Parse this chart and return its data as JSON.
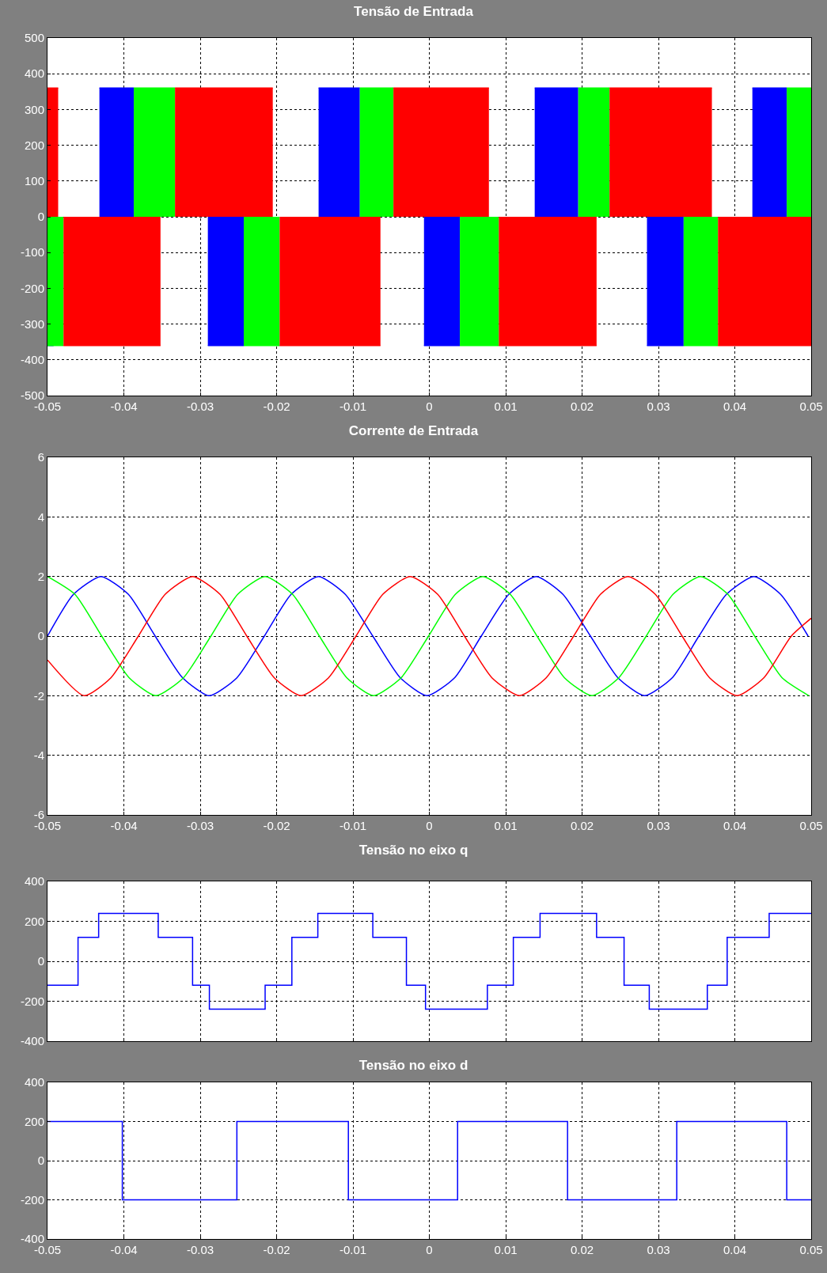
{
  "chart_data": [
    {
      "type": "area",
      "title": "Tensão de Entrada",
      "xlim": [
        -0.05,
        0.05
      ],
      "xticks": [
        -0.05,
        -0.04,
        -0.03,
        -0.02,
        -0.01,
        0,
        0.01,
        0.02,
        0.03,
        0.04,
        0.05
      ],
      "ylim": [
        -500,
        500
      ],
      "yticks": [
        -500,
        -400,
        -300,
        -200,
        -100,
        0,
        100,
        200,
        300,
        400,
        500
      ],
      "grid": true,
      "series": [
        {
          "color": "#0000ff",
          "x": [
            -0.05,
            -0.0492,
            -0.0462,
            -0.0432,
            -0.0387,
            -0.0339,
            -0.029,
            -0.0243,
            -0.0194,
            -0.0145,
            -0.0091,
            -0.0049,
            -0.0007,
            0.004,
            0.0089,
            0.0138,
            0.0195,
            0.024,
            0.0285,
            0.0333,
            0.0378,
            0.0423,
            0.0468
          ],
          "values": [
            -360,
            -360,
            null,
            360,
            360,
            null,
            -360,
            -360,
            null,
            360,
            360,
            null,
            -360,
            -360,
            null,
            360,
            360,
            null,
            -360,
            -360,
            null,
            360,
            360
          ]
        },
        {
          "color": "#00ff00",
          "x": [
            -0.05,
            -0.0479,
            -0.0433,
            -0.0387,
            -0.0333,
            -0.0288,
            -0.0243,
            -0.0196,
            -0.0144,
            -0.0091,
            -0.0047,
            -0.0004,
            0.004,
            0.0091,
            0.0143,
            0.0195,
            0.0236,
            0.0285,
            0.0333,
            0.0378,
            0.0423,
            0.0468,
            0.05
          ],
          "values": [
            -360,
            -360,
            null,
            360,
            360,
            null,
            -360,
            -360,
            null,
            360,
            360,
            null,
            -360,
            -360,
            null,
            360,
            360,
            null,
            -360,
            -360,
            null,
            360,
            360
          ]
        },
        {
          "color": "#ff0000",
          "x": [
            -0.05,
            -0.0486,
            -0.0482,
            -0.0479,
            -0.0352,
            -0.0342,
            -0.0333,
            -0.0205,
            -0.02,
            -0.0196,
            -0.0064,
            -0.0055,
            -0.0047,
            0.0078,
            0.0084,
            0.0091,
            0.0219,
            0.0227,
            0.0236,
            0.037,
            0.0374,
            0.0378,
            0.05
          ],
          "values": [
            360,
            360,
            null,
            -360,
            -360,
            null,
            360,
            360,
            null,
            -360,
            -360,
            null,
            360,
            360,
            null,
            -360,
            -360,
            null,
            360,
            360,
            null,
            -360,
            -360
          ]
        }
      ]
    },
    {
      "type": "line",
      "title": "Corrente de Entrada",
      "xlim": [
        -0.05,
        0.05
      ],
      "xticks": [
        -0.05,
        -0.04,
        -0.03,
        -0.02,
        -0.01,
        0,
        0.01,
        0.02,
        0.03,
        0.04,
        0.05
      ],
      "ylim": [
        -6,
        6
      ],
      "yticks": [
        -6,
        -4,
        -2,
        0,
        2,
        4,
        6
      ],
      "grid": true,
      "marker": "none",
      "series": [
        {
          "color": "#0000ff",
          "x": [
            -0.05,
            -0.0466,
            -0.043,
            -0.0394,
            -0.0359,
            -0.0323,
            -0.0288,
            -0.0252,
            -0.0216,
            -0.0181,
            -0.0145,
            -0.011,
            -0.0074,
            -0.0038,
            -0.0003,
            0.0033,
            0.0068,
            0.0104,
            0.014,
            0.0175,
            0.0211,
            0.0247,
            0.0282,
            0.0318,
            0.0353,
            0.0389,
            0.0425,
            0.046,
            0.0496
          ],
          "values": [
            0,
            1.4,
            2,
            1.4,
            0,
            -1.4,
            -2,
            -1.4,
            0,
            1.4,
            2,
            1.4,
            0,
            -1.4,
            -2,
            -1.4,
            0,
            1.4,
            2,
            1.4,
            0,
            -1.4,
            -2,
            -1.4,
            0,
            1.4,
            2,
            1.4,
            0
          ]
        },
        {
          "color": "#00ff00",
          "x": [
            -0.05,
            -0.0464,
            -0.0429,
            -0.0393,
            -0.0358,
            -0.0322,
            -0.0286,
            -0.0251,
            -0.0215,
            -0.0179,
            -0.0144,
            -0.0108,
            -0.0073,
            -0.0037,
            -0.0001,
            0.0034,
            0.007,
            0.0106,
            0.0141,
            0.0177,
            0.0213,
            0.0248,
            0.0284,
            0.0319,
            0.0355,
            0.0391,
            0.0426,
            0.0462,
            0.0497
          ],
          "values": [
            2,
            1.4,
            0,
            -1.4,
            -2,
            -1.4,
            0,
            1.4,
            2,
            1.4,
            0,
            -1.4,
            -2,
            -1.4,
            0,
            1.4,
            2,
            1.4,
            0,
            -1.4,
            -2,
            -1.4,
            0,
            1.4,
            2,
            1.4,
            0,
            -1.4,
            -2
          ]
        },
        {
          "color": "#ff0000",
          "x": [
            -0.05,
            -0.0452,
            -0.0417,
            -0.0381,
            -0.0346,
            -0.031,
            -0.0274,
            -0.0239,
            -0.0203,
            -0.0168,
            -0.0132,
            -0.0096,
            -0.0061,
            -0.0025,
            0.0011,
            0.0046,
            0.0082,
            0.0118,
            0.0153,
            0.0189,
            0.0224,
            0.026,
            0.0296,
            0.0331,
            0.0367,
            0.0403,
            0.0438,
            0.0474,
            0.05
          ],
          "values": [
            -0.8,
            -2,
            -1.4,
            0,
            1.4,
            2,
            1.4,
            0,
            -1.4,
            -2,
            -1.4,
            0,
            1.4,
            2,
            1.4,
            0,
            -1.4,
            -2,
            -1.4,
            0,
            1.4,
            2,
            1.4,
            0,
            -1.4,
            -2,
            -1.4,
            0,
            0.6
          ]
        }
      ]
    },
    {
      "type": "step",
      "title": "Tensão no eixo q",
      "xlim": [
        -0.05,
        0.05
      ],
      "xticks": [
        -0.05,
        -0.04,
        -0.03,
        -0.02,
        -0.01,
        0,
        0.01,
        0.02,
        0.03,
        0.04,
        0.05
      ],
      "ylim": [
        -400,
        400
      ],
      "yticks": [
        -400,
        -200,
        0,
        200,
        400
      ],
      "grid": true,
      "tick_labels": "y",
      "series": [
        {
          "color": "#0000ff",
          "x": [
            -0.05,
            -0.046,
            -0.0433,
            -0.0355,
            -0.031,
            -0.0288,
            -0.0215,
            -0.018,
            -0.0146,
            -0.0074,
            -0.003,
            -0.0005,
            0.0076,
            0.011,
            0.0145,
            0.0219,
            0.0255,
            0.0288,
            0.0364,
            0.039,
            0.0445,
            0.05
          ],
          "values": [
            -120,
            120,
            240,
            120,
            -120,
            -240,
            -120,
            120,
            240,
            120,
            -120,
            -240,
            -120,
            120,
            240,
            120,
            -120,
            -240,
            -120,
            120,
            240,
            240
          ]
        }
      ]
    },
    {
      "type": "step",
      "title": "Tensão no eixo d",
      "xlim": [
        -0.05,
        0.05
      ],
      "xticks": [
        -0.05,
        -0.04,
        -0.03,
        -0.02,
        -0.01,
        0,
        0.01,
        0.02,
        0.03,
        0.04,
        0.05
      ],
      "ylim": [
        -400,
        400
      ],
      "yticks": [
        -400,
        -200,
        0,
        200,
        400
      ],
      "grid": true,
      "series": [
        {
          "color": "#0000ff",
          "x": [
            -0.05,
            -0.0402,
            -0.0252,
            -0.0106,
            0.0037,
            0.0181,
            0.0324,
            0.0468,
            0.05
          ],
          "values": [
            200,
            -200,
            200,
            -200,
            200,
            -200,
            200,
            -200,
            -200
          ]
        }
      ]
    }
  ]
}
